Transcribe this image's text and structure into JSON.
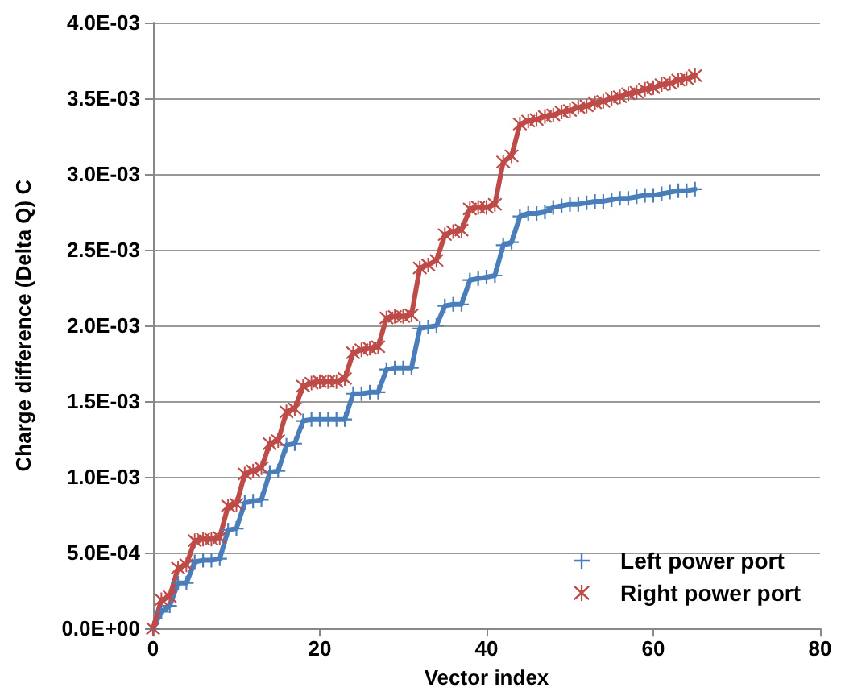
{
  "chart_data": {
    "type": "line",
    "xlabel": "Vector index",
    "ylabel": "Charge difference (Delta Q) C",
    "x": [
      0,
      1,
      2,
      3,
      4,
      5,
      6,
      7,
      8,
      9,
      10,
      11,
      12,
      13,
      14,
      15,
      16,
      17,
      18,
      19,
      20,
      21,
      22,
      23,
      24,
      25,
      26,
      27,
      28,
      29,
      30,
      31,
      32,
      33,
      34,
      35,
      36,
      37,
      38,
      39,
      40,
      41,
      42,
      43,
      44,
      45,
      46,
      47,
      48,
      49,
      50,
      51,
      52,
      53,
      54,
      55,
      56,
      57,
      58,
      59,
      60,
      61,
      62,
      63,
      64,
      65
    ],
    "series": [
      {
        "name": "Left power port",
        "color": "#4a7ebb",
        "marker": "cross",
        "values": [
          0,
          0.00011,
          0.00015,
          0.0003,
          0.0003,
          0.00044,
          0.00045,
          0.00045,
          0.00046,
          0.00065,
          0.00066,
          0.00083,
          0.00084,
          0.00085,
          0.00103,
          0.00104,
          0.00121,
          0.00122,
          0.00137,
          0.00138,
          0.00138,
          0.00138,
          0.00138,
          0.00138,
          0.00155,
          0.00155,
          0.00156,
          0.00156,
          0.00171,
          0.00172,
          0.00172,
          0.00172,
          0.00198,
          0.00199,
          0.002,
          0.00213,
          0.00214,
          0.00214,
          0.0023,
          0.00231,
          0.00232,
          0.00233,
          0.00253,
          0.00255,
          0.00272,
          0.00274,
          0.00274,
          0.00275,
          0.00278,
          0.00279,
          0.0028,
          0.0028,
          0.00281,
          0.00282,
          0.00282,
          0.00283,
          0.00284,
          0.00284,
          0.00285,
          0.00286,
          0.00286,
          0.00287,
          0.00288,
          0.00289,
          0.00289,
          0.0029
        ]
      },
      {
        "name": "Right power port",
        "color": "#be4b48",
        "marker": "star",
        "values": [
          0,
          0.00019,
          0.00021,
          0.0004,
          0.00042,
          0.00058,
          0.00059,
          0.00059,
          0.0006,
          0.00081,
          0.00082,
          0.00102,
          0.00104,
          0.00106,
          0.00122,
          0.00124,
          0.00143,
          0.00145,
          0.0016,
          0.00162,
          0.00163,
          0.00163,
          0.00163,
          0.00165,
          0.00182,
          0.00184,
          0.00185,
          0.00186,
          0.00205,
          0.00206,
          0.00206,
          0.00207,
          0.00238,
          0.0024,
          0.00243,
          0.0026,
          0.00262,
          0.00263,
          0.00277,
          0.00278,
          0.00278,
          0.0028,
          0.00308,
          0.00312,
          0.00333,
          0.00335,
          0.00336,
          0.00338,
          0.00339,
          0.00341,
          0.00342,
          0.00344,
          0.00345,
          0.00347,
          0.00348,
          0.0035,
          0.00351,
          0.00353,
          0.00354,
          0.00356,
          0.00357,
          0.00359,
          0.0036,
          0.00362,
          0.00363,
          0.00365
        ]
      }
    ],
    "xlim": [
      0,
      80
    ],
    "xticks": [
      0,
      20,
      40,
      60,
      80
    ],
    "ylim": [
      0,
      0.004
    ],
    "yticks": [
      {
        "value": 0,
        "label": "0.0E+00"
      },
      {
        "value": 0.0005,
        "label": "5.0E-04"
      },
      {
        "value": 0.001,
        "label": "1.0E-03"
      },
      {
        "value": 0.0015,
        "label": "1.5E-03"
      },
      {
        "value": 0.002,
        "label": "2.0E-03"
      },
      {
        "value": 0.0025,
        "label": "2.5E-03"
      },
      {
        "value": 0.003,
        "label": "3.0E-03"
      },
      {
        "value": 0.0035,
        "label": "3.5E-03"
      },
      {
        "value": 0.004,
        "label": "4.0E-03"
      }
    ],
    "grid": "y",
    "legend": "bottom right",
    "line_style": "solid"
  }
}
